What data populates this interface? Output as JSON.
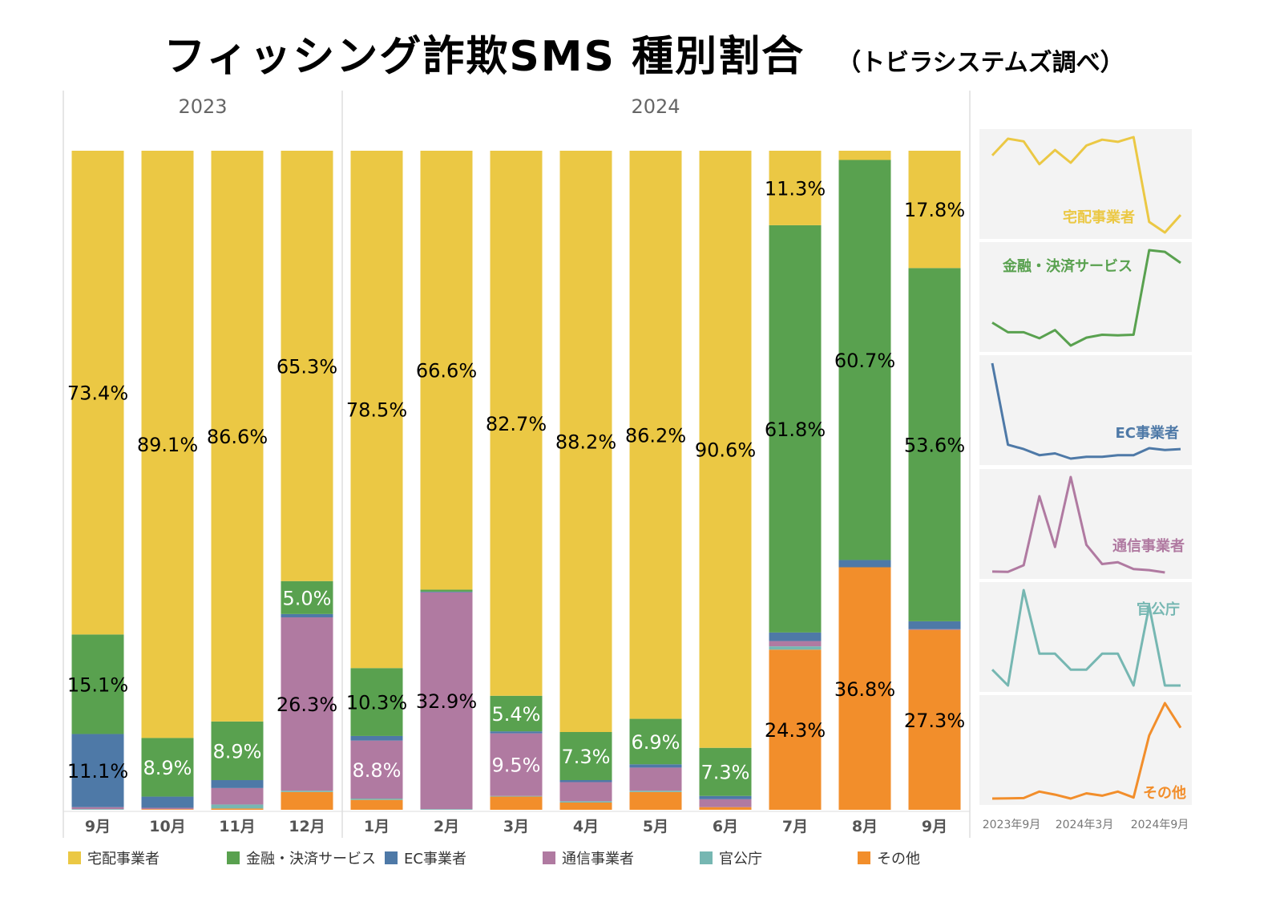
{
  "title": "フィッシング詐欺SMS 種別割合",
  "subtitle": "（トビラシステムズ調べ）",
  "chart_data": {
    "type": "bar",
    "stacked": true,
    "normalized": true,
    "title": "フィッシング詐欺SMS 種別割合",
    "subtitle": "（トビラシステムズ調べ）",
    "years": [
      {
        "label": "2023",
        "months": 4
      },
      {
        "label": "2024",
        "months": 9
      }
    ],
    "categories": [
      "9月",
      "10月",
      "11月",
      "12月",
      "1月",
      "2月",
      "3月",
      "4月",
      "5月",
      "6月",
      "7月",
      "8月",
      "9月"
    ],
    "ylim": [
      0,
      100
    ],
    "series": [
      {
        "name": "宅配事業者",
        "color": "#EBC844",
        "values": [
          73.4,
          89.1,
          86.6,
          65.3,
          78.5,
          66.6,
          82.7,
          88.2,
          86.2,
          90.6,
          11.3,
          1.4,
          17.8
        ]
      },
      {
        "name": "金融・決済サービス",
        "color": "#59A14F",
        "values": [
          15.1,
          8.9,
          8.9,
          5.0,
          10.3,
          0.3,
          5.4,
          7.3,
          6.9,
          7.3,
          61.8,
          60.7,
          53.6
        ]
      },
      {
        "name": "EC事業者",
        "color": "#4E79A7",
        "values": [
          11.1,
          1.7,
          1.2,
          0.5,
          0.7,
          0.1,
          0.3,
          0.3,
          0.5,
          0.5,
          1.3,
          1.1,
          1.2
        ]
      },
      {
        "name": "通信事業者",
        "color": "#B07AA1",
        "values": [
          0.3,
          0.2,
          2.5,
          26.3,
          8.8,
          32.9,
          9.5,
          2.9,
          3.5,
          1.2,
          0.8,
          0.0,
          0.1
        ]
      },
      {
        "name": "官公庁",
        "color": "#76B7B2",
        "values": [
          0.1,
          0.0,
          0.6,
          0.2,
          0.2,
          0.1,
          0.1,
          0.2,
          0.2,
          0.0,
          0.5,
          0.0,
          0.0
        ]
      },
      {
        "name": "その他",
        "color": "#F28E2B",
        "values": [
          0.0,
          0.1,
          0.2,
          2.7,
          1.5,
          0.0,
          2.0,
          1.1,
          2.7,
          0.4,
          24.3,
          36.8,
          27.3
        ]
      }
    ],
    "label_threshold": 5,
    "legend": "bottom",
    "sparklines": {
      "x_tick_labels": [
        "2023年9月",
        "2024年3月",
        "2024年9月"
      ]
    }
  }
}
